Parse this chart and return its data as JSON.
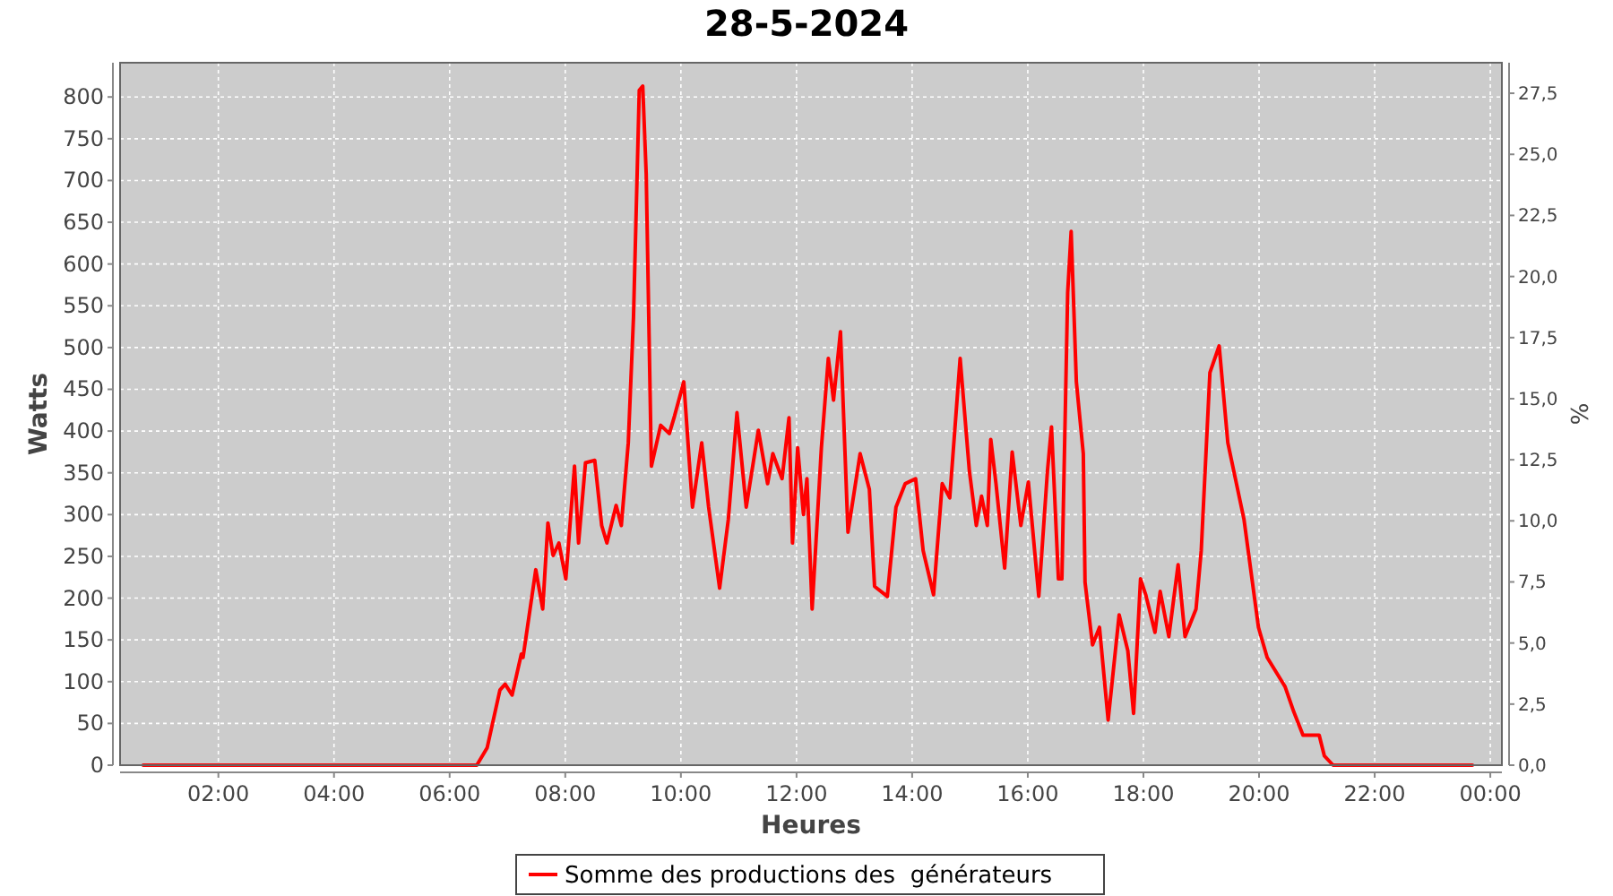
{
  "chart_data": {
    "type": "line",
    "title": "28-5-2024",
    "xlabel": "Heures",
    "ylabel": "Watts",
    "y2label": "%",
    "xlim": [
      0.3,
      24.2
    ],
    "ylim": [
      0,
      841
    ],
    "y2lim": [
      0,
      28.75
    ],
    "xticks": [
      {
        "value": 2,
        "label": "02:00"
      },
      {
        "value": 4,
        "label": "04:00"
      },
      {
        "value": 6,
        "label": "06:00"
      },
      {
        "value": 8,
        "label": "08:00"
      },
      {
        "value": 10,
        "label": "10:00"
      },
      {
        "value": 12,
        "label": "12:00"
      },
      {
        "value": 14,
        "label": "14:00"
      },
      {
        "value": 16,
        "label": "16:00"
      },
      {
        "value": 18,
        "label": "18:00"
      },
      {
        "value": 20,
        "label": "20:00"
      },
      {
        "value": 22,
        "label": "22:00"
      },
      {
        "value": 24,
        "label": "00:00"
      }
    ],
    "yticks": [
      0,
      50,
      100,
      150,
      200,
      250,
      300,
      350,
      400,
      450,
      500,
      550,
      600,
      650,
      700,
      750,
      800
    ],
    "y2ticks": [
      {
        "value": 0,
        "label": "0,0"
      },
      {
        "value": 2.5,
        "label": "2,5"
      },
      {
        "value": 5,
        "label": "5,0"
      },
      {
        "value": 7.5,
        "label": "7,5"
      },
      {
        "value": 10,
        "label": "10,0"
      },
      {
        "value": 12.5,
        "label": "12,5"
      },
      {
        "value": 15,
        "label": "15,0"
      },
      {
        "value": 17.5,
        "label": "17,5"
      },
      {
        "value": 20,
        "label": "20,0"
      },
      {
        "value": 22.5,
        "label": "22,5"
      },
      {
        "value": 25,
        "label": "25,0"
      },
      {
        "value": 27.5,
        "label": "27,5"
      }
    ],
    "grid": true,
    "legend": "bottom",
    "line_style": "solid",
    "series": [
      {
        "name": "Somme des productions des  générateurs",
        "color": "#ff0000",
        "x": [
          0.7,
          6.41,
          6.47,
          6.65,
          6.87,
          6.96,
          7.08,
          7.24,
          7.27,
          7.49,
          7.61,
          7.7,
          7.79,
          7.89,
          8.01,
          8.16,
          8.23,
          8.35,
          8.51,
          8.63,
          8.72,
          8.88,
          8.97,
          9.09,
          9.18,
          9.28,
          9.34,
          9.4,
          9.49,
          9.65,
          9.8,
          9.89,
          10.05,
          10.2,
          10.36,
          10.48,
          10.67,
          10.82,
          10.97,
          11.13,
          11.34,
          11.5,
          11.59,
          11.75,
          11.87,
          11.93,
          12.02,
          12.12,
          12.18,
          12.27,
          12.43,
          12.55,
          12.64,
          12.76,
          12.89,
          13.1,
          13.26,
          13.35,
          13.57,
          13.72,
          13.88,
          14.06,
          14.19,
          14.37,
          14.52,
          14.65,
          14.83,
          14.99,
          15.11,
          15.2,
          15.3,
          15.36,
          15.45,
          15.6,
          15.73,
          15.88,
          16.01,
          16.19,
          16.34,
          16.41,
          16.53,
          16.59,
          16.69,
          16.75,
          16.84,
          16.96,
          16.99,
          17.12,
          17.24,
          17.39,
          17.58,
          17.73,
          17.83,
          17.95,
          18.04,
          18.2,
          18.29,
          18.44,
          18.6,
          18.72,
          18.91,
          19.0,
          19.15,
          19.31,
          19.46,
          19.74,
          19.99,
          20.14,
          20.45,
          20.6,
          20.76,
          21.04,
          21.13,
          21.28,
          23.69
        ],
        "values": [
          0,
          0,
          0,
          21,
          90,
          97,
          84,
          133,
          129,
          234,
          187,
          290,
          251,
          266,
          223,
          358,
          266,
          362,
          365,
          287,
          266,
          311,
          287,
          386,
          536,
          808,
          813,
          708,
          358,
          407,
          397,
          418,
          459,
          309,
          386,
          309,
          212,
          294,
          422,
          309,
          401,
          337,
          373,
          343,
          416,
          266,
          380,
          300,
          343,
          187,
          380,
          487,
          437,
          519,
          279,
          373,
          330,
          214,
          202,
          309,
          337,
          343,
          257,
          204,
          337,
          320,
          487,
          352,
          287,
          322,
          287,
          390,
          337,
          236,
          375,
          287,
          339,
          202,
          352,
          405,
          223,
          223,
          566,
          639,
          459,
          373,
          219,
          144,
          165,
          54,
          180,
          137,
          62,
          223,
          204,
          159,
          208,
          154,
          240,
          154,
          187,
          257,
          470,
          502,
          386,
          294,
          165,
          129,
          94,
          64,
          36,
          36,
          11,
          0,
          0
        ]
      }
    ]
  }
}
